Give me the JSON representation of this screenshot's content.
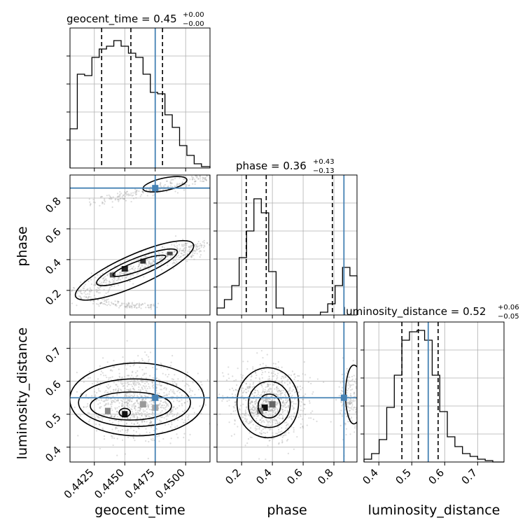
{
  "figure": {
    "titles": {
      "geocent_time": {
        "name": "geocent_time",
        "value": "0.45",
        "plus": "+0.00",
        "minus": "−0.00"
      },
      "phase": {
        "name": "phase",
        "value": "0.36",
        "plus": "+0.43",
        "minus": "−0.13"
      },
      "luminosity_distance": {
        "name": "luminosity_distance",
        "value": "0.52",
        "plus": "+0.06",
        "minus": "−0.05"
      }
    },
    "axis_labels": {
      "x_geocent_time": "geocent_time",
      "x_phase": "phase",
      "x_luminosity_distance": "luminosity_distance",
      "y_phase": "phase",
      "y_luminosity_distance": "luminosity_distance"
    },
    "colors": {
      "truth": "#4682b4",
      "hist": "#000000",
      "grid": "#b0b0b0",
      "points": "#9a9a9a"
    }
  },
  "chart_data": {
    "type": "corner",
    "parameters": [
      "geocent_time",
      "phase",
      "luminosity_distance"
    ],
    "truths": {
      "geocent_time": 0.4475,
      "phase": 0.865,
      "luminosity_distance": 0.55
    },
    "quantiles": {
      "geocent_time": [
        0.4431,
        0.4455,
        0.4481
      ],
      "phase": [
        0.23,
        0.36,
        0.79
      ],
      "luminosity_distance": [
        0.47,
        0.52,
        0.58
      ]
    },
    "ranges": {
      "geocent_time": [
        0.4405,
        0.452
      ],
      "phase": [
        0.04,
        0.95
      ],
      "luminosity_distance": [
        0.355,
        0.78
      ]
    },
    "ticks": {
      "geocent_time": [
        0.4425,
        0.445,
        0.4475,
        0.45
      ],
      "geocent_time_labels": [
        "0.4425",
        "0.4450",
        "0.4475",
        "0.4500"
      ],
      "phase": [
        0.2,
        0.4,
        0.6,
        0.8
      ],
      "phase_labels": [
        "0.2",
        "0.4",
        "0.6",
        "0.8"
      ],
      "luminosity_distance": [
        0.4,
        0.5,
        0.6,
        0.7
      ],
      "luminosity_distance_labels": [
        "0.4",
        "0.5",
        "0.6",
        "0.7"
      ]
    },
    "hist_geocent_time": {
      "edges": [
        0.4405,
        0.4411,
        0.4417,
        0.4423,
        0.4429,
        0.4435,
        0.4441,
        0.4447,
        0.4453,
        0.4459,
        0.4465,
        0.4471,
        0.4477,
        0.4483,
        0.4489,
        0.4495,
        0.4501,
        0.4507,
        0.4513,
        0.452
      ],
      "counts": [
        0.28,
        0.67,
        0.66,
        0.79,
        0.85,
        0.87,
        0.91,
        0.87,
        0.82,
        0.79,
        0.67,
        0.54,
        0.53,
        0.38,
        0.29,
        0.16,
        0.09,
        0.03,
        0.01
      ]
    },
    "hist_phase": {
      "edges": [
        0.04,
        0.088,
        0.136,
        0.184,
        0.232,
        0.28,
        0.328,
        0.376,
        0.424,
        0.472,
        0.52,
        0.568,
        0.616,
        0.664,
        0.712,
        0.76,
        0.808,
        0.856,
        0.904,
        0.95
      ],
      "counts": [
        0.05,
        0.11,
        0.21,
        0.41,
        0.6,
        0.83,
        0.73,
        0.31,
        0.05,
        0.0,
        0.0,
        0.0,
        0.0,
        0.0,
        0.02,
        0.08,
        0.21,
        0.34,
        0.28
      ]
    },
    "hist_luminosity_distance": {
      "edges": [
        0.355,
        0.378,
        0.401,
        0.424,
        0.447,
        0.47,
        0.493,
        0.516,
        0.539,
        0.562,
        0.585,
        0.608,
        0.631,
        0.654,
        0.677,
        0.7,
        0.723,
        0.746,
        0.78
      ],
      "counts": [
        0.02,
        0.06,
        0.16,
        0.39,
        0.62,
        0.87,
        0.93,
        0.94,
        0.87,
        0.62,
        0.36,
        0.18,
        0.11,
        0.06,
        0.04,
        0.02,
        0.01,
        0.0
      ]
    }
  }
}
